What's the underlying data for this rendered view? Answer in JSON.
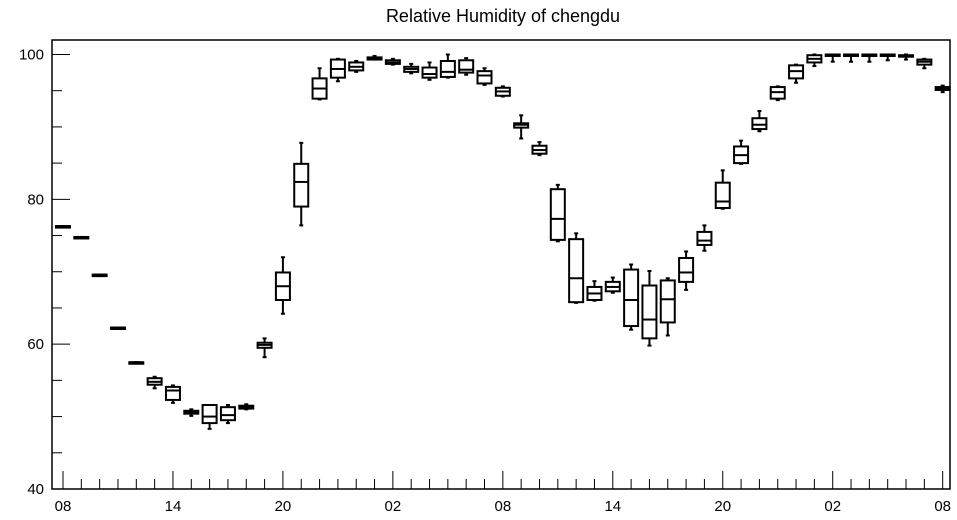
{
  "chart_data": {
    "type": "box",
    "title": "Relative Humidity of chengdu",
    "xlabel": "",
    "ylabel": "",
    "ylim": [
      40,
      102
    ],
    "y_ticks": [
      40,
      60,
      80,
      100
    ],
    "x_tick_labels": [
      "08",
      "14",
      "20",
      "02",
      "08",
      "14",
      "20",
      "02",
      "08"
    ],
    "x_tick_hours": [
      0,
      6,
      12,
      18,
      24,
      30,
      36,
      42,
      48
    ],
    "xlim": [
      -0.6,
      48.4
    ],
    "grid": false,
    "legend": "none",
    "boxes": [
      {
        "hour": 0,
        "min": 76.3,
        "q1": 76.3,
        "median": 76.3,
        "q3": 76.3,
        "max": 76.3
      },
      {
        "hour": 1,
        "min": 74.8,
        "q1": 74.8,
        "median": 74.8,
        "q3": 74.8,
        "max": 74.8
      },
      {
        "hour": 2,
        "min": 69.6,
        "q1": 69.6,
        "median": 69.6,
        "q3": 69.6,
        "max": 69.6
      },
      {
        "hour": 3,
        "min": 62.3,
        "q1": 62.3,
        "median": 62.3,
        "q3": 62.3,
        "max": 62.3
      },
      {
        "hour": 4,
        "min": 57.5,
        "q1": 57.5,
        "median": 57.5,
        "q3": 57.5,
        "max": 57.5
      },
      {
        "hour": 5,
        "min": 53.9,
        "q1": 54.4,
        "median": 54.8,
        "q3": 55.3,
        "max": 55.5
      },
      {
        "hour": 6,
        "min": 51.9,
        "q1": 52.3,
        "median": 53.6,
        "q3": 54.1,
        "max": 54.3
      },
      {
        "hour": 7,
        "min": 50.1,
        "q1": 50.4,
        "median": 50.6,
        "q3": 50.8,
        "max": 51.0
      },
      {
        "hour": 8,
        "min": 48.3,
        "q1": 49.1,
        "median": 50.0,
        "q3": 51.6,
        "max": 51.6
      },
      {
        "hour": 9,
        "min": 49.1,
        "q1": 49.5,
        "median": 50.2,
        "q3": 51.3,
        "max": 51.6
      },
      {
        "hour": 10,
        "min": 51.0,
        "q1": 51.1,
        "median": 51.3,
        "q3": 51.5,
        "max": 51.7
      },
      {
        "hour": 11,
        "min": 58.2,
        "q1": 59.5,
        "median": 59.9,
        "q3": 60.2,
        "max": 60.8
      },
      {
        "hour": 12,
        "min": 64.2,
        "q1": 66.1,
        "median": 68.0,
        "q3": 69.9,
        "max": 72.0
      },
      {
        "hour": 13,
        "min": 76.4,
        "q1": 79.0,
        "median": 82.4,
        "q3": 84.9,
        "max": 87.8
      },
      {
        "hour": 14,
        "min": 93.8,
        "q1": 93.9,
        "median": 95.3,
        "q3": 96.7,
        "max": 98.1
      },
      {
        "hour": 15,
        "min": 96.3,
        "q1": 96.8,
        "median": 98.0,
        "q3": 99.3,
        "max": 99.4
      },
      {
        "hour": 16,
        "min": 97.6,
        "q1": 97.8,
        "median": 98.3,
        "q3": 98.9,
        "max": 99.1
      },
      {
        "hour": 17,
        "min": 99.3,
        "q1": 99.3,
        "median": 99.5,
        "q3": 99.6,
        "max": 99.8
      },
      {
        "hour": 18,
        "min": 98.6,
        "q1": 98.7,
        "median": 98.9,
        "q3": 99.2,
        "max": 99.4
      },
      {
        "hour": 19,
        "min": 97.4,
        "q1": 97.6,
        "median": 98.0,
        "q3": 98.3,
        "max": 98.7
      },
      {
        "hour": 20,
        "min": 96.5,
        "q1": 96.8,
        "median": 97.3,
        "q3": 98.2,
        "max": 98.9
      },
      {
        "hour": 21,
        "min": 96.8,
        "q1": 96.9,
        "median": 97.6,
        "q3": 99.1,
        "max": 100.0
      },
      {
        "hour": 22,
        "min": 97.2,
        "q1": 97.5,
        "median": 97.9,
        "q3": 99.2,
        "max": 99.5
      },
      {
        "hour": 23,
        "min": 95.8,
        "q1": 96.0,
        "median": 97.1,
        "q3": 97.7,
        "max": 98.1
      },
      {
        "hour": 24,
        "min": 94.2,
        "q1": 94.3,
        "median": 94.9,
        "q3": 95.4,
        "max": 95.6
      },
      {
        "hour": 25,
        "min": 88.4,
        "q1": 89.9,
        "median": 90.3,
        "q3": 90.5,
        "max": 91.6
      },
      {
        "hour": 26,
        "min": 86.1,
        "q1": 86.3,
        "median": 86.8,
        "q3": 87.4,
        "max": 87.9
      },
      {
        "hour": 27,
        "min": 74.2,
        "q1": 74.4,
        "median": 77.3,
        "q3": 81.4,
        "max": 82.0
      },
      {
        "hour": 28,
        "min": 65.7,
        "q1": 65.8,
        "median": 69.1,
        "q3": 74.5,
        "max": 75.3
      },
      {
        "hour": 29,
        "min": 66.0,
        "q1": 66.1,
        "median": 67.0,
        "q3": 67.9,
        "max": 68.7
      },
      {
        "hour": 30,
        "min": 67.1,
        "q1": 67.3,
        "median": 67.9,
        "q3": 68.6,
        "max": 69.2
      },
      {
        "hour": 31,
        "min": 62.0,
        "q1": 62.5,
        "median": 66.1,
        "q3": 70.3,
        "max": 71.0
      },
      {
        "hour": 32,
        "min": 59.8,
        "q1": 60.8,
        "median": 63.4,
        "q3": 68.1,
        "max": 70.1
      },
      {
        "hour": 33,
        "min": 61.2,
        "q1": 63.0,
        "median": 66.2,
        "q3": 68.8,
        "max": 69.1
      },
      {
        "hour": 34,
        "min": 67.5,
        "q1": 68.6,
        "median": 69.9,
        "q3": 71.9,
        "max": 72.8
      },
      {
        "hour": 35,
        "min": 72.9,
        "q1": 73.7,
        "median": 74.3,
        "q3": 75.5,
        "max": 76.4
      },
      {
        "hour": 36,
        "min": 78.7,
        "q1": 78.8,
        "median": 79.7,
        "q3": 82.3,
        "max": 84.0
      },
      {
        "hour": 37,
        "min": 84.9,
        "q1": 85.0,
        "median": 86.1,
        "q3": 87.3,
        "max": 88.1
      },
      {
        "hour": 38,
        "min": 89.4,
        "q1": 89.7,
        "median": 90.3,
        "q3": 91.2,
        "max": 92.2
      },
      {
        "hour": 39,
        "min": 93.7,
        "q1": 93.9,
        "median": 94.8,
        "q3": 95.5,
        "max": 95.6
      },
      {
        "hour": 40,
        "min": 96.1,
        "q1": 96.7,
        "median": 97.7,
        "q3": 98.5,
        "max": 98.6
      },
      {
        "hour": 41,
        "min": 98.4,
        "q1": 98.9,
        "median": 99.4,
        "q3": 99.9,
        "max": 100.0
      },
      {
        "hour": 42,
        "min": 99.0,
        "q1": 99.8,
        "median": 99.9,
        "q3": 100.0,
        "max": 100.0
      },
      {
        "hour": 43,
        "min": 99.0,
        "q1": 99.8,
        "median": 99.9,
        "q3": 100.0,
        "max": 100.0
      },
      {
        "hour": 44,
        "min": 99.0,
        "q1": 99.8,
        "median": 99.9,
        "q3": 100.0,
        "max": 100.0
      },
      {
        "hour": 45,
        "min": 99.2,
        "q1": 99.8,
        "median": 99.9,
        "q3": 100.0,
        "max": 100.0
      },
      {
        "hour": 46,
        "min": 99.3,
        "q1": 99.7,
        "median": 99.8,
        "q3": 99.9,
        "max": 100.0
      },
      {
        "hour": 47,
        "min": 98.1,
        "q1": 98.6,
        "median": 99.0,
        "q3": 99.3,
        "max": 99.4
      },
      {
        "hour": 48,
        "min": 94.8,
        "q1": 95.1,
        "median": 95.3,
        "q3": 95.5,
        "max": 95.7
      }
    ]
  }
}
